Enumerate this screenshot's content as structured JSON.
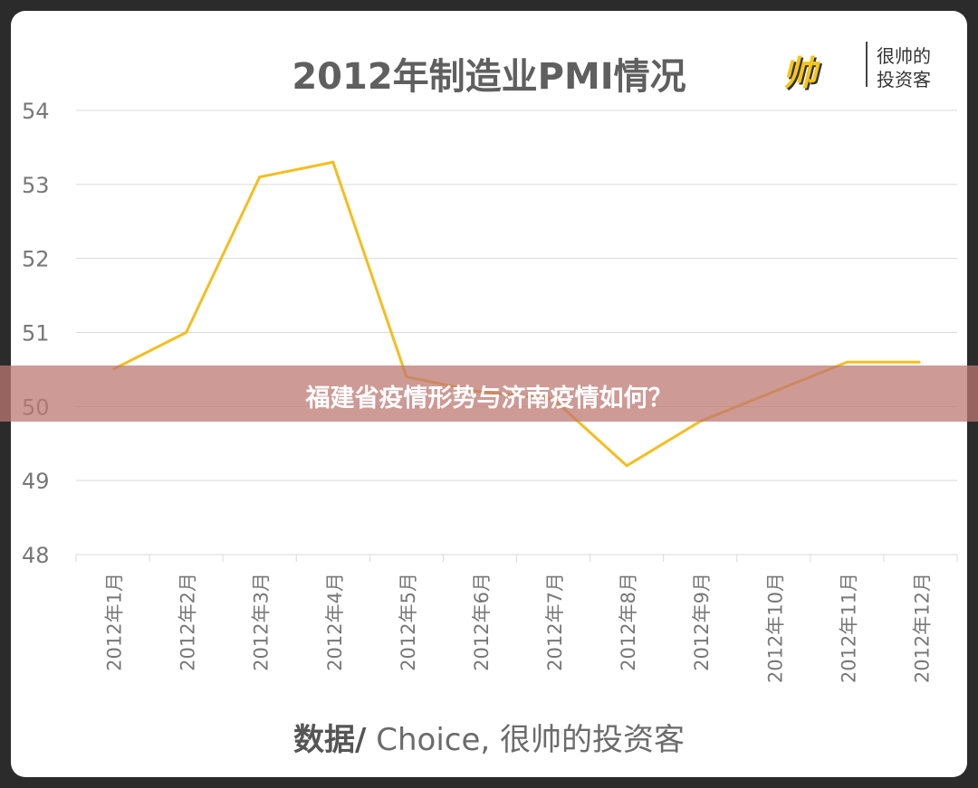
{
  "chart_data": {
    "type": "line",
    "title": "2012年制造业PMI情况",
    "categories": [
      "2012年1月",
      "2012年2月",
      "2012年3月",
      "2012年4月",
      "2012年5月",
      "2012年6月",
      "2012年7月",
      "2012年8月",
      "2012年9月",
      "2012年10月",
      "2012年11月",
      "2012年12月"
    ],
    "values": [
      50.5,
      51.0,
      53.1,
      53.3,
      50.4,
      50.2,
      50.1,
      49.2,
      49.8,
      50.2,
      50.6,
      50.6
    ],
    "ylim": [
      48,
      54
    ],
    "yticks": [
      "48",
      "49",
      "50",
      "51",
      "52",
      "53",
      "54"
    ],
    "grid": true,
    "line_color": "#f5bd1f"
  },
  "source": {
    "bold": "数据/",
    "rest": " Choice, 很帅的投资客"
  },
  "logo": {
    "line1": "很帅的",
    "line2": "投资客",
    "mark": "帅"
  },
  "banner": {
    "text": "福建省疫情形势与济南疫情如何？"
  }
}
